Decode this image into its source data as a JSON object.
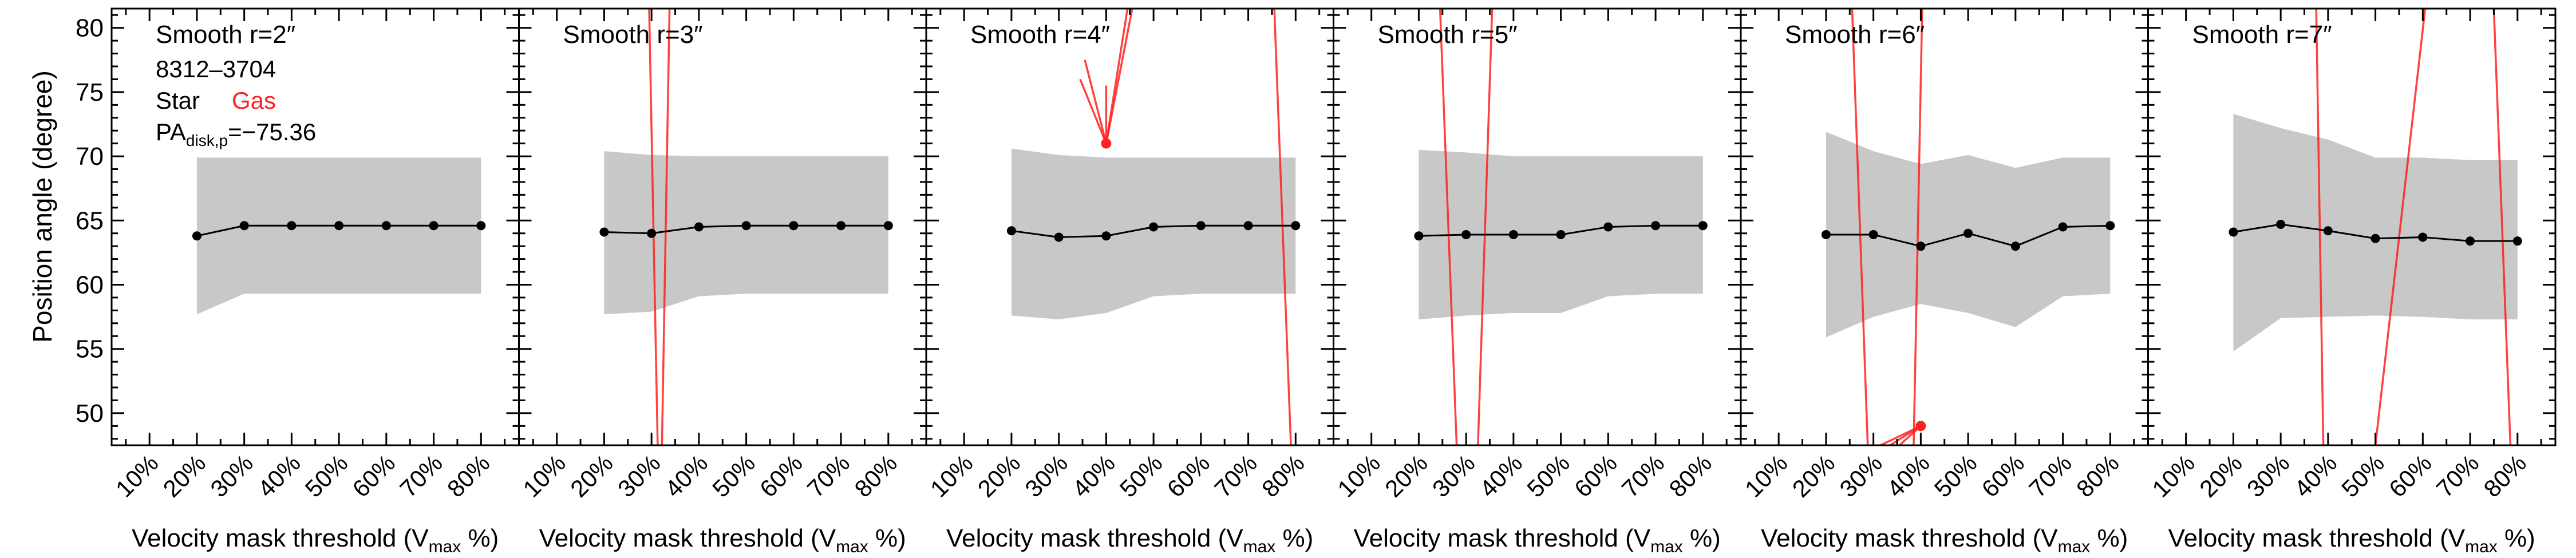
{
  "chart_data": {
    "type": "line",
    "ylabel": "Position angle (degree)",
    "xlabel_main": "Velocity mask threshold (V",
    "xlabel_sub": "max",
    "xlabel_tail": " %)",
    "ylim": [
      47.5,
      81.5
    ],
    "yticks": [
      50,
      55,
      60,
      65,
      70,
      75,
      80
    ],
    "xlim": [
      2,
      88
    ],
    "x_categories": [
      "10%",
      "20%",
      "30%",
      "40%",
      "50%",
      "60%",
      "70%",
      "80%"
    ],
    "x_values": [
      10,
      20,
      30,
      40,
      50,
      60,
      70,
      80
    ],
    "legend": {
      "object": "8312–3704",
      "star_label": "Star",
      "gas_label": "Gas",
      "pa_main": "PA",
      "pa_sub": "disk,p",
      "pa_value": "=−75.36"
    },
    "colors": {
      "star": "#000000",
      "gas": "#ff2020",
      "band": "#c8c8c8"
    },
    "panels": [
      {
        "title": "Smooth r=2″",
        "star_x": [
          20,
          30,
          40,
          50,
          60,
          70,
          80
        ],
        "star_y": [
          63.8,
          64.6,
          64.6,
          64.6,
          64.6,
          64.6,
          64.6
        ],
        "band_upper": [
          69.9,
          69.9,
          69.9,
          69.9,
          69.9,
          69.9,
          69.9
        ],
        "band_lower": [
          57.7,
          59.3,
          59.3,
          59.3,
          59.3,
          59.3,
          59.3
        ],
        "gas_points": [],
        "gas_lines": []
      },
      {
        "title": "Smooth r=3″",
        "star_x": [
          20,
          30,
          40,
          50,
          60,
          70,
          80
        ],
        "star_y": [
          64.1,
          64.0,
          64.5,
          64.6,
          64.6,
          64.6,
          64.6
        ],
        "band_upper": [
          70.4,
          70.1,
          70.0,
          70.0,
          70.0,
          70.0,
          70.0
        ],
        "band_lower": [
          57.7,
          57.9,
          59.1,
          59.3,
          59.3,
          59.3,
          59.3
        ],
        "gas_points": [],
        "gas_lines": [
          [
            [
              29.5,
              81.5
            ],
            [
              31.3,
              47.5
            ]
          ],
          [
            [
              33.8,
              81.5
            ],
            [
              32.2,
              47.5
            ]
          ]
        ]
      },
      {
        "title": "Smooth r=4″",
        "star_x": [
          20,
          30,
          40,
          50,
          60,
          70,
          80
        ],
        "star_y": [
          64.2,
          63.7,
          63.8,
          64.5,
          64.6,
          64.6,
          64.6
        ],
        "band_upper": [
          70.6,
          70.1,
          69.9,
          69.9,
          69.9,
          69.9,
          69.9
        ],
        "band_lower": [
          57.6,
          57.3,
          57.8,
          59.1,
          59.3,
          59.3,
          59.3
        ],
        "gas_points": [
          [
            40,
            71.0
          ]
        ],
        "gas_lines": [
          [
            [
              40,
              71.0
            ],
            [
              34.5,
              76.0
            ]
          ],
          [
            [
              40,
              71.0
            ],
            [
              35.5,
              77.5
            ]
          ],
          [
            [
              40,
              71.0
            ],
            [
              40.0,
              75.5
            ]
          ],
          [
            [
              40,
              71.0
            ],
            [
              44.5,
              81.5
            ]
          ],
          [
            [
              40,
              71.0
            ],
            [
              45.5,
              81.5
            ]
          ],
          [
            [
              75.5,
              81.5
            ],
            [
              79.0,
              47.5
            ]
          ]
        ]
      },
      {
        "title": "Smooth r=5″",
        "star_x": [
          20,
          30,
          40,
          50,
          60,
          70,
          80
        ],
        "star_y": [
          63.8,
          63.9,
          63.9,
          63.9,
          64.5,
          64.6,
          64.6
        ],
        "band_upper": [
          70.5,
          70.3,
          70.0,
          70.0,
          70.0,
          70.0,
          70.0
        ],
        "band_lower": [
          57.3,
          57.6,
          57.8,
          57.8,
          59.1,
          59.3,
          59.3
        ],
        "gas_points": [],
        "gas_lines": [
          [
            [
              24.5,
              81.5
            ],
            [
              28.0,
              47.5
            ]
          ],
          [
            [
              35.5,
              81.5
            ],
            [
              32.5,
              47.5
            ]
          ]
        ]
      },
      {
        "title": "Smooth r=6″",
        "star_x": [
          20,
          30,
          40,
          50,
          60,
          70,
          80
        ],
        "star_y": [
          63.9,
          63.9,
          63.0,
          64.0,
          63.0,
          64.5,
          64.6
        ],
        "band_upper": [
          71.9,
          70.4,
          69.4,
          70.1,
          69.1,
          69.9,
          69.9
        ],
        "band_lower": [
          55.9,
          57.5,
          58.5,
          57.8,
          56.7,
          59.1,
          59.3
        ],
        "gas_points": [
          [
            40,
            49.0
          ]
        ],
        "gas_lines": [
          [
            [
              25.5,
              81.5
            ],
            [
              28.8,
              47.5
            ]
          ],
          [
            [
              40.3,
              81.5
            ],
            [
              38.5,
              47.5
            ]
          ],
          [
            [
              40,
              49.0
            ],
            [
              31.5,
              47.5
            ]
          ],
          [
            [
              40,
              49.0
            ],
            [
              33.5,
              47.5
            ]
          ],
          [
            [
              40,
              49.0
            ],
            [
              35.5,
              47.5
            ]
          ]
        ]
      },
      {
        "title": "Smooth r=7″",
        "star_x": [
          20,
          30,
          40,
          50,
          60,
          70,
          80
        ],
        "star_y": [
          64.1,
          64.7,
          64.2,
          63.6,
          63.7,
          63.4,
          63.4
        ],
        "band_upper": [
          73.3,
          72.2,
          71.3,
          69.9,
          69.9,
          69.7,
          69.7
        ],
        "band_lower": [
          54.8,
          57.4,
          57.5,
          57.6,
          57.5,
          57.3,
          57.3
        ],
        "gas_points": [],
        "gas_lines": [
          [
            [
              37.5,
              81.5
            ],
            [
              39.0,
              47.5
            ]
          ],
          [
            [
              60.5,
              81.5
            ],
            [
              50.0,
              47.5
            ]
          ],
          [
            [
              75.0,
              81.5
            ],
            [
              78.5,
              47.5
            ]
          ]
        ]
      }
    ]
  }
}
